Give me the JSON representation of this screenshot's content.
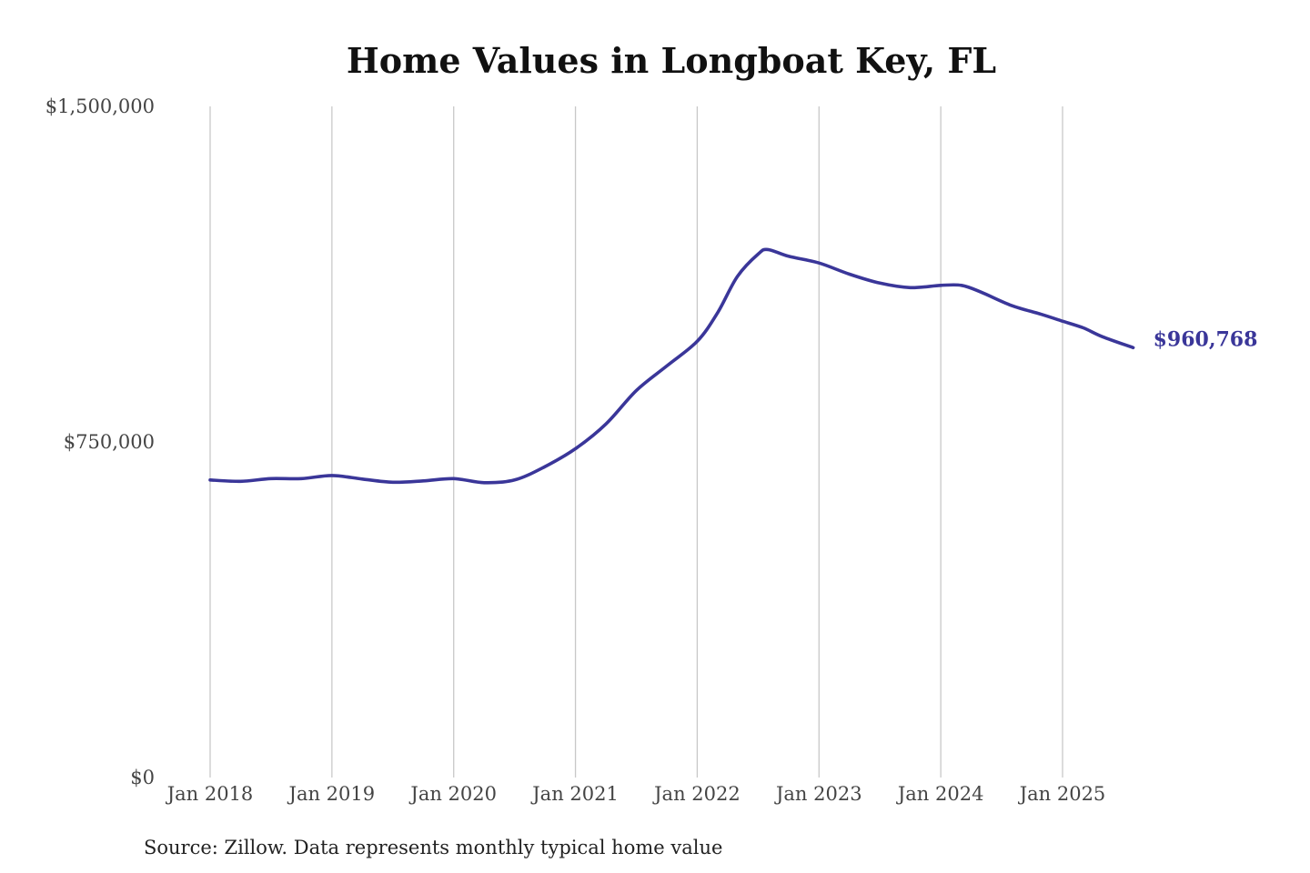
{
  "chart_data": {
    "type": "line",
    "title": "Home Values in Longboat Key, FL",
    "xlabel": "",
    "ylabel": "",
    "ylim": [
      0,
      1500000
    ],
    "y_ticks": [
      {
        "value": 0,
        "label": "$0"
      },
      {
        "value": 750000,
        "label": "$750,000"
      },
      {
        "value": 1500000,
        "label": "$1,500,000"
      }
    ],
    "x_ticks": [
      {
        "value": 2018.0,
        "label": "Jan 2018"
      },
      {
        "value": 2019.0,
        "label": "Jan 2019"
      },
      {
        "value": 2020.0,
        "label": "Jan 2020"
      },
      {
        "value": 2021.0,
        "label": "Jan 2021"
      },
      {
        "value": 2022.0,
        "label": "Jan 2022"
      },
      {
        "value": 2023.0,
        "label": "Jan 2023"
      },
      {
        "value": 2024.0,
        "label": "Jan 2024"
      },
      {
        "value": 2025.0,
        "label": "Jan 2025"
      }
    ],
    "xlim": [
      2018.0,
      2025.75
    ],
    "grid": "vertical",
    "legend": "none",
    "line_color": "#3a3699",
    "series": [
      {
        "x": [
          2018.0,
          2018.25,
          2018.5,
          2018.75,
          2019.0,
          2019.25,
          2019.5,
          2019.75,
          2020.0,
          2020.25,
          2020.5,
          2020.75,
          2021.0,
          2021.25,
          2021.5,
          2021.75,
          2022.0,
          2022.17,
          2022.33,
          2022.5,
          2022.58,
          2022.75,
          2023.0,
          2023.25,
          2023.5,
          2023.75,
          2024.0,
          2024.17,
          2024.33,
          2024.58,
          2024.83,
          2025.0,
          2025.17,
          2025.33,
          2025.58
        ],
        "values": [
          665000,
          662000,
          668000,
          668000,
          675000,
          667000,
          660000,
          663000,
          668000,
          659000,
          665000,
          695000,
          735000,
          790000,
          865000,
          920000,
          975000,
          1040000,
          1120000,
          1170000,
          1180000,
          1165000,
          1150000,
          1125000,
          1105000,
          1095000,
          1100000,
          1100000,
          1085000,
          1055000,
          1035000,
          1020000,
          1005000,
          985000,
          960768
        ]
      }
    ],
    "end_label": "$960,768",
    "source": "Source: Zillow. Data represents monthly typical home value"
  }
}
